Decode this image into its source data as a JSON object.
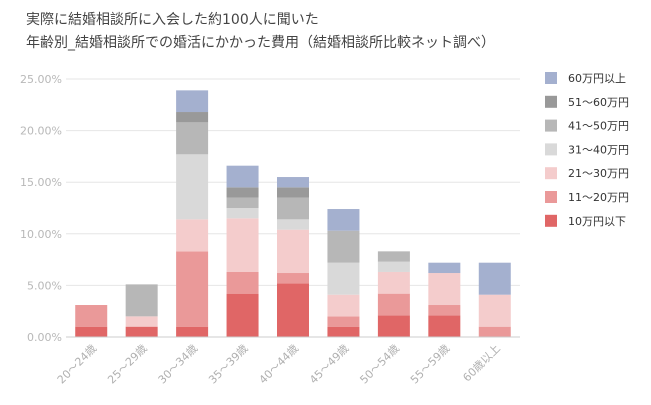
{
  "chart_data": {
    "type": "bar",
    "stacked": true,
    "title": "実際に結婚相談所に入会した約100人に聞いた",
    "subtitle": "年齢別_結婚相談所での婚活にかかった費用（結婚相談所比較ネット調べ）",
    "xlabel": "",
    "ylabel": "",
    "ylim": [
      0,
      0.25
    ],
    "yticks": [
      "0.00%",
      "5.00%",
      "10.00%",
      "15.00%",
      "20.00%",
      "25.00%"
    ],
    "grid": true,
    "legend_position": "right",
    "categories": [
      "20〜24歳",
      "25〜29歳",
      "30〜34歳",
      "35〜39歳",
      "40〜44歳",
      "45〜49歳",
      "50〜54歳",
      "55〜59歳",
      "60歳以上"
    ],
    "series": [
      {
        "name": "10万円以下",
        "color": "#e06666",
        "values": [
          0.01,
          0.01,
          0.01,
          0.042,
          0.052,
          0.01,
          0.021,
          0.021,
          0.0
        ]
      },
      {
        "name": "11〜20万円",
        "color": "#ea9999",
        "values": [
          0.021,
          0.0,
          0.073,
          0.021,
          0.01,
          0.01,
          0.021,
          0.01,
          0.01
        ]
      },
      {
        "name": "21〜30万円",
        "color": "#f4cccc",
        "values": [
          0.0,
          0.01,
          0.031,
          0.052,
          0.042,
          0.021,
          0.021,
          0.031,
          0.031
        ]
      },
      {
        "name": "31〜40万円",
        "color": "#d9d9d9",
        "values": [
          0.0,
          0.0,
          0.063,
          0.01,
          0.01,
          0.031,
          0.01,
          0.0,
          0.0
        ]
      },
      {
        "name": "41〜50万円",
        "color": "#b7b7b7",
        "values": [
          0.0,
          0.031,
          0.031,
          0.01,
          0.021,
          0.031,
          0.01,
          0.0,
          0.0
        ]
      },
      {
        "name": "51〜60万円",
        "color": "#999999",
        "values": [
          0.0,
          0.0,
          0.01,
          0.01,
          0.01,
          0.0,
          0.0,
          0.0,
          0.0
        ]
      },
      {
        "name": "60万円以上",
        "color": "#a4b0cf",
        "values": [
          0.0,
          0.0,
          0.021,
          0.021,
          0.01,
          0.021,
          0.0,
          0.01,
          0.031
        ]
      }
    ]
  }
}
